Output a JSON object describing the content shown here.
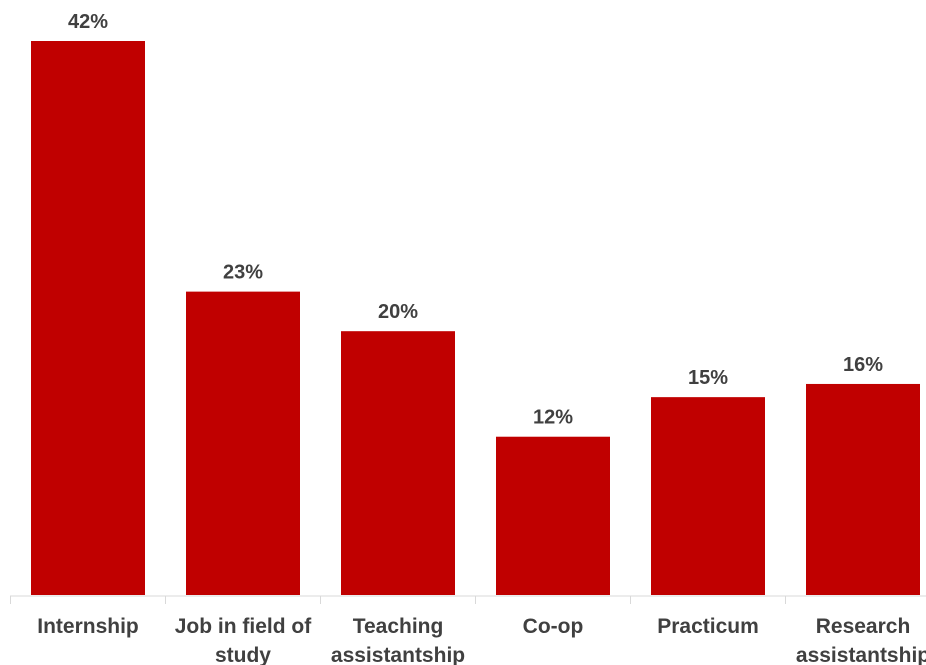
{
  "chart_data": {
    "type": "bar",
    "categories": [
      [
        "Internship"
      ],
      [
        "Job in field of",
        "study"
      ],
      [
        "Teaching",
        "assistantship"
      ],
      [
        "Co-op"
      ],
      [
        "Practicum"
      ],
      [
        "Research",
        "assistantship"
      ]
    ],
    "values": [
      42,
      23,
      20,
      12,
      15,
      16
    ],
    "data_labels": [
      "42%",
      "23%",
      "20%",
      "12%",
      "15%",
      "16%"
    ],
    "ylim": [
      0,
      42
    ],
    "grid": false,
    "legend": "none",
    "bar_color": "#c00000",
    "label_color": "#404040"
  }
}
